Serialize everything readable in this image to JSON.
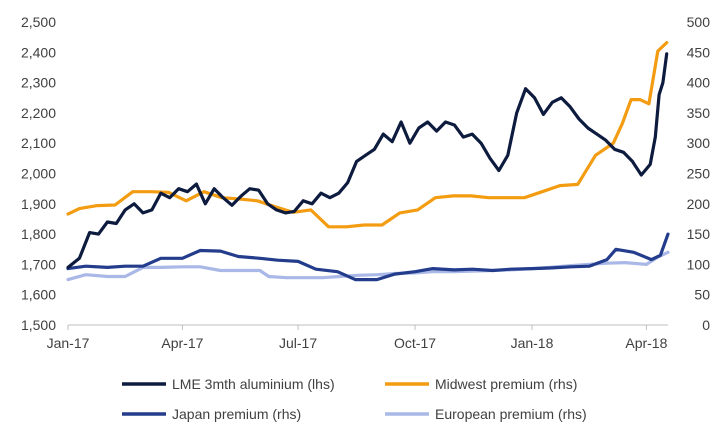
{
  "chart_data": {
    "type": "line",
    "title": "",
    "xlabel": "",
    "ylabel_left": "",
    "ylabel_right": "",
    "x_range": [
      "2017-01-01",
      "2018-04-18"
    ],
    "x_ticks": [
      {
        "date": "2017-01-01",
        "label": "Jan-17"
      },
      {
        "date": "2017-04-01",
        "label": "Apr-17"
      },
      {
        "date": "2017-07-01",
        "label": "Jul-17"
      },
      {
        "date": "2017-10-01",
        "label": "Oct-17"
      },
      {
        "date": "2018-01-01",
        "label": "Jan-18"
      },
      {
        "date": "2018-04-01",
        "label": "Apr-18"
      }
    ],
    "ylim_left": [
      1500,
      2500
    ],
    "yticks_left": [
      "1,500",
      "1,600",
      "1,700",
      "1,800",
      "1,900",
      "2,000",
      "2,100",
      "2,200",
      "2,300",
      "2,400",
      "2,500"
    ],
    "ylim_right": [
      0,
      500
    ],
    "yticks_right": [
      "0",
      "50",
      "100",
      "150",
      "200",
      "250",
      "300",
      "350",
      "400",
      "450",
      "500"
    ],
    "grid": false,
    "legend_position": "bottom",
    "series": [
      {
        "name": "LME 3mth aluminium (lhs)",
        "axis": "left",
        "color": "#0d1b3e",
        "points": [
          [
            "2017-01-01",
            1690
          ],
          [
            "2017-01-10",
            1720
          ],
          [
            "2017-01-18",
            1805
          ],
          [
            "2017-01-25",
            1800
          ],
          [
            "2017-02-01",
            1840
          ],
          [
            "2017-02-08",
            1835
          ],
          [
            "2017-02-15",
            1880
          ],
          [
            "2017-02-22",
            1900
          ],
          [
            "2017-03-01",
            1870
          ],
          [
            "2017-03-08",
            1880
          ],
          [
            "2017-03-15",
            1935
          ],
          [
            "2017-03-22",
            1920
          ],
          [
            "2017-03-29",
            1950
          ],
          [
            "2017-04-05",
            1940
          ],
          [
            "2017-04-12",
            1965
          ],
          [
            "2017-04-19",
            1900
          ],
          [
            "2017-04-26",
            1950
          ],
          [
            "2017-05-03",
            1920
          ],
          [
            "2017-05-10",
            1895
          ],
          [
            "2017-05-17",
            1925
          ],
          [
            "2017-05-24",
            1950
          ],
          [
            "2017-05-31",
            1945
          ],
          [
            "2017-06-07",
            1900
          ],
          [
            "2017-06-14",
            1880
          ],
          [
            "2017-06-21",
            1870
          ],
          [
            "2017-06-28",
            1875
          ],
          [
            "2017-07-05",
            1910
          ],
          [
            "2017-07-12",
            1900
          ],
          [
            "2017-07-19",
            1935
          ],
          [
            "2017-07-26",
            1920
          ],
          [
            "2017-08-02",
            1935
          ],
          [
            "2017-08-09",
            1970
          ],
          [
            "2017-08-16",
            2040
          ],
          [
            "2017-08-23",
            2060
          ],
          [
            "2017-08-30",
            2080
          ],
          [
            "2017-09-06",
            2130
          ],
          [
            "2017-09-13",
            2105
          ],
          [
            "2017-09-20",
            2170
          ],
          [
            "2017-09-27",
            2100
          ],
          [
            "2017-10-04",
            2150
          ],
          [
            "2017-10-11",
            2170
          ],
          [
            "2017-10-18",
            2140
          ],
          [
            "2017-10-25",
            2170
          ],
          [
            "2017-11-01",
            2160
          ],
          [
            "2017-11-08",
            2120
          ],
          [
            "2017-11-15",
            2130
          ],
          [
            "2017-11-22",
            2100
          ],
          [
            "2017-11-29",
            2050
          ],
          [
            "2017-12-06",
            2010
          ],
          [
            "2017-12-13",
            2060
          ],
          [
            "2017-12-20",
            2200
          ],
          [
            "2017-12-27",
            2280
          ],
          [
            "2018-01-03",
            2250
          ],
          [
            "2018-01-10",
            2195
          ],
          [
            "2018-01-17",
            2235
          ],
          [
            "2018-01-24",
            2250
          ],
          [
            "2018-01-31",
            2220
          ],
          [
            "2018-02-07",
            2180
          ],
          [
            "2018-02-14",
            2150
          ],
          [
            "2018-02-21",
            2130
          ],
          [
            "2018-02-28",
            2110
          ],
          [
            "2018-03-07",
            2080
          ],
          [
            "2018-03-14",
            2070
          ],
          [
            "2018-03-21",
            2040
          ],
          [
            "2018-03-28",
            1995
          ],
          [
            "2018-04-04",
            2030
          ],
          [
            "2018-04-08",
            2120
          ],
          [
            "2018-04-11",
            2260
          ],
          [
            "2018-04-14",
            2300
          ],
          [
            "2018-04-17",
            2395
          ]
        ]
      },
      {
        "name": "Midwest premium (rhs)",
        "axis": "right",
        "color": "#f39c12",
        "points": [
          [
            "2017-01-01",
            183
          ],
          [
            "2017-01-10",
            192
          ],
          [
            "2017-01-24",
            197
          ],
          [
            "2017-02-07",
            198
          ],
          [
            "2017-02-21",
            220
          ],
          [
            "2017-03-07",
            220
          ],
          [
            "2017-03-21",
            219
          ],
          [
            "2017-04-04",
            205
          ],
          [
            "2017-04-18",
            220
          ],
          [
            "2017-05-02",
            210
          ],
          [
            "2017-05-16",
            208
          ],
          [
            "2017-05-30",
            205
          ],
          [
            "2017-06-13",
            195
          ],
          [
            "2017-06-27",
            186
          ],
          [
            "2017-07-11",
            190
          ],
          [
            "2017-07-25",
            162
          ],
          [
            "2017-08-08",
            162
          ],
          [
            "2017-08-22",
            165
          ],
          [
            "2017-09-05",
            165
          ],
          [
            "2017-09-19",
            185
          ],
          [
            "2017-10-03",
            190
          ],
          [
            "2017-10-17",
            210
          ],
          [
            "2017-10-31",
            213
          ],
          [
            "2017-11-14",
            213
          ],
          [
            "2017-11-28",
            210
          ],
          [
            "2017-12-12",
            210
          ],
          [
            "2017-12-26",
            210
          ],
          [
            "2018-01-09",
            220
          ],
          [
            "2018-01-23",
            230
          ],
          [
            "2018-02-06",
            232
          ],
          [
            "2018-02-20",
            280
          ],
          [
            "2018-03-06",
            300
          ],
          [
            "2018-03-13",
            332
          ],
          [
            "2018-03-20",
            372
          ],
          [
            "2018-03-27",
            372
          ],
          [
            "2018-04-03",
            365
          ],
          [
            "2018-04-10",
            452
          ],
          [
            "2018-04-17",
            466
          ]
        ]
      },
      {
        "name": "Japan premium (rhs)",
        "axis": "right",
        "color": "#233c8c",
        "points": [
          [
            "2017-01-01",
            93
          ],
          [
            "2017-01-15",
            97
          ],
          [
            "2017-02-01",
            95
          ],
          [
            "2017-02-15",
            97
          ],
          [
            "2017-03-01",
            97
          ],
          [
            "2017-03-15",
            110
          ],
          [
            "2017-04-01",
            110
          ],
          [
            "2017-04-15",
            123
          ],
          [
            "2017-05-01",
            122
          ],
          [
            "2017-05-15",
            113
          ],
          [
            "2017-06-01",
            110
          ],
          [
            "2017-06-15",
            107
          ],
          [
            "2017-07-01",
            105
          ],
          [
            "2017-07-15",
            92
          ],
          [
            "2017-08-01",
            88
          ],
          [
            "2017-08-15",
            75
          ],
          [
            "2017-09-01",
            75
          ],
          [
            "2017-09-15",
            84
          ],
          [
            "2017-10-01",
            88
          ],
          [
            "2017-10-15",
            93
          ],
          [
            "2017-11-01",
            91
          ],
          [
            "2017-11-15",
            92
          ],
          [
            "2017-12-01",
            90
          ],
          [
            "2017-12-15",
            92
          ],
          [
            "2018-01-01",
            93
          ],
          [
            "2018-01-15",
            94
          ],
          [
            "2018-02-01",
            96
          ],
          [
            "2018-02-15",
            97
          ],
          [
            "2018-03-01",
            108
          ],
          [
            "2018-03-08",
            125
          ],
          [
            "2018-03-22",
            120
          ],
          [
            "2018-04-05",
            108
          ],
          [
            "2018-04-12",
            115
          ],
          [
            "2018-04-18",
            150
          ]
        ]
      },
      {
        "name": "European premium (rhs)",
        "axis": "right",
        "color": "#a9b8e6",
        "points": [
          [
            "2017-01-01",
            75
          ],
          [
            "2017-01-15",
            83
          ],
          [
            "2017-02-01",
            80
          ],
          [
            "2017-02-15",
            80
          ],
          [
            "2017-03-01",
            95
          ],
          [
            "2017-03-15",
            95
          ],
          [
            "2017-04-01",
            96
          ],
          [
            "2017-04-15",
            96
          ],
          [
            "2017-05-01",
            90
          ],
          [
            "2017-05-15",
            90
          ],
          [
            "2017-06-01",
            90
          ],
          [
            "2017-06-08",
            80
          ],
          [
            "2017-06-22",
            78
          ],
          [
            "2017-07-06",
            78
          ],
          [
            "2017-07-20",
            78
          ],
          [
            "2017-08-03",
            80
          ],
          [
            "2017-08-17",
            82
          ],
          [
            "2017-09-01",
            83
          ],
          [
            "2017-09-15",
            85
          ],
          [
            "2017-10-01",
            86
          ],
          [
            "2017-10-15",
            88
          ],
          [
            "2017-11-01",
            88
          ],
          [
            "2017-11-15",
            89
          ],
          [
            "2017-12-01",
            90
          ],
          [
            "2017-12-15",
            91
          ],
          [
            "2018-01-01",
            93
          ],
          [
            "2018-01-15",
            95
          ],
          [
            "2018-02-01",
            98
          ],
          [
            "2018-02-15",
            100
          ],
          [
            "2018-03-01",
            102
          ],
          [
            "2018-03-15",
            103
          ],
          [
            "2018-04-01",
            100
          ],
          [
            "2018-04-10",
            112
          ],
          [
            "2018-04-18",
            120
          ]
        ]
      }
    ],
    "legend": [
      {
        "label": "LME 3mth aluminium (lhs)",
        "color": "#0d1b3e"
      },
      {
        "label": "Midwest premium (rhs)",
        "color": "#f39c12"
      },
      {
        "label": "Japan premium (rhs)",
        "color": "#233c8c"
      },
      {
        "label": "European premium (rhs)",
        "color": "#a9b8e6"
      }
    ]
  }
}
